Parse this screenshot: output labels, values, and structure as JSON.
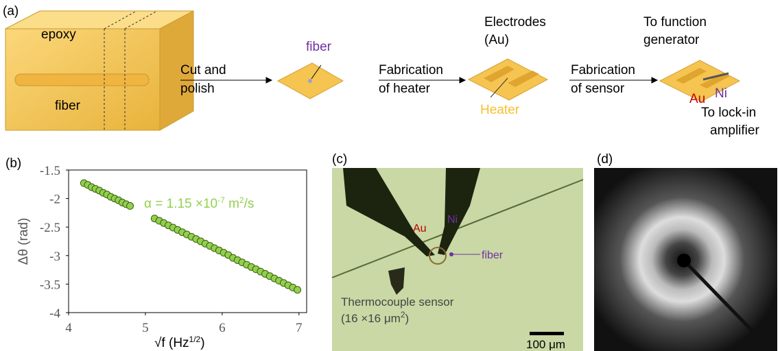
{
  "panel_labels": [
    "(a)",
    "(b)",
    "(c)",
    "(d)"
  ],
  "panel_a": {
    "block_top": "epoxy",
    "block_core": "fiber",
    "step1": [
      "Cut and",
      "polish"
    ],
    "fiber_label": "fiber",
    "step2": [
      "Fabrication",
      "of heater"
    ],
    "electrodes": [
      "Electrodes",
      "(Au)"
    ],
    "heater": "Heater",
    "step3": [
      "Fabrication",
      "of sensor"
    ],
    "function_gen": [
      "To function",
      "generator"
    ],
    "au": "Au",
    "ni": "Ni",
    "lockin": [
      "To lock-in",
      "amplifier"
    ]
  },
  "chart_data": {
    "type": "scatter",
    "x": [
      4.2,
      4.25,
      4.3,
      4.35,
      4.4,
      4.45,
      4.5,
      4.55,
      4.6,
      4.65,
      4.7,
      4.75,
      4.8,
      5.12,
      5.18,
      5.24,
      5.3,
      5.36,
      5.42,
      5.48,
      5.54,
      5.6,
      5.66,
      5.72,
      5.78,
      5.84,
      5.9,
      5.96,
      6.02,
      6.08,
      6.14,
      6.2,
      6.26,
      6.32,
      6.38,
      6.44,
      6.5,
      6.56,
      6.62,
      6.68,
      6.74,
      6.8,
      6.86,
      6.92,
      6.98
    ],
    "series": [
      {
        "color": "#92d050",
        "values": [
          -1.73,
          -1.76,
          -1.8,
          -1.83,
          -1.86,
          -1.9,
          -1.93,
          -1.97,
          -2.0,
          -2.03,
          -2.07,
          -2.1,
          -2.13,
          -2.35,
          -2.39,
          -2.43,
          -2.47,
          -2.51,
          -2.55,
          -2.59,
          -2.63,
          -2.67,
          -2.71,
          -2.75,
          -2.79,
          -2.83,
          -2.87,
          -2.91,
          -2.95,
          -2.99,
          -3.04,
          -3.08,
          -3.12,
          -3.16,
          -3.2,
          -3.24,
          -3.28,
          -3.32,
          -3.36,
          -3.4,
          -3.44,
          -3.48,
          -3.52,
          -3.56,
          -3.6
        ]
      }
    ],
    "xlim": [
      4,
      7.1
    ],
    "xticks": [
      4,
      5,
      6,
      7
    ],
    "ylim": [
      -4,
      -1.5
    ],
    "yticks": [
      -4,
      -3.5,
      -3,
      -2.5,
      -2,
      -1.5
    ],
    "x_label": [
      {
        "text": "√f (Hz"
      },
      {
        "text": "1/2",
        "sup": true
      },
      {
        "text": ")"
      }
    ],
    "y_label": "Δθ (rad)",
    "annotation": [
      {
        "text": "α = 1.15 ×10"
      },
      {
        "text": "-7",
        "sup": true
      },
      {
        "text": " m"
      },
      {
        "text": "2",
        "sup": true
      },
      {
        "text": "/s"
      }
    ]
  },
  "panel_c": {
    "au": "Au",
    "ni": "Ni",
    "fiber": "fiber",
    "sensor": "Thermocouple sensor",
    "size": [
      {
        "text": "(16 ×16 μm"
      },
      {
        "text": "2",
        "sup": true
      },
      {
        "text": ")"
      }
    ],
    "scale": "100 μm"
  }
}
